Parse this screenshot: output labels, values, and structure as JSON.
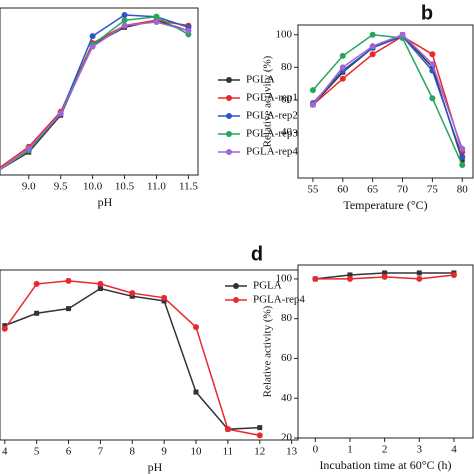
{
  "chart_data": [
    {
      "type": "line",
      "xlabel": "pH",
      "x": [
        8.5,
        9.0,
        9.5,
        10.0,
        10.5,
        11.0,
        11.5
      ],
      "xlim": [
        8.55,
        11.65
      ],
      "xticks": [
        {
          "value": 9.0,
          "label": "9.0"
        },
        {
          "value": 9.5,
          "label": "9.5"
        },
        {
          "value": 10.0,
          "label": "10.0"
        },
        {
          "value": 10.5,
          "label": "10.5"
        },
        {
          "value": 11.0,
          "label": "11.0"
        },
        {
          "value": 11.5,
          "label": "11.5"
        }
      ],
      "ylim": [
        10,
        105
      ],
      "series": [
        {
          "name": "PGLA",
          "color": "#333333",
          "values": [
            12,
            23,
            44,
            84,
            94,
            98,
            92
          ]
        },
        {
          "name": "PGLA-rep1",
          "color": "#e8282b",
          "values": [
            13,
            26,
            46,
            85,
            95,
            98,
            95
          ]
        },
        {
          "name": "PGLA-rep2",
          "color": "#2a56c6",
          "values": [
            12,
            24,
            45,
            89,
            101,
            100,
            94
          ]
        },
        {
          "name": "PGLA-rep3",
          "color": "#26a65b",
          "values": [
            12,
            24,
            45,
            84,
            98,
            100,
            90
          ]
        },
        {
          "name": "PGLA-rep4",
          "color": "#a066d8",
          "values": [
            12,
            25,
            45,
            83,
            95,
            97,
            92
          ]
        }
      ]
    },
    {
      "type": "line",
      "title": "b",
      "xlabel": "Temperature (°C)",
      "ylabel": "Relative activity (%)",
      "x": [
        55,
        60,
        65,
        70,
        75,
        80
      ],
      "xlim": [
        52.5,
        81.8
      ],
      "xticks": [
        55,
        60,
        65,
        70,
        75,
        80
      ],
      "ylim": [
        12,
        106
      ],
      "yticks": [
        40,
        60,
        80,
        100
      ],
      "series": [
        {
          "color": "#333333",
          "values": [
            57,
            77,
            92,
            100,
            80,
            23
          ]
        },
        {
          "color": "#e8282b",
          "values": [
            57,
            73,
            88,
            99,
            88,
            28
          ]
        },
        {
          "color": "#2a56c6",
          "values": [
            58,
            78,
            92,
            99,
            78,
            25
          ]
        },
        {
          "color": "#26a65b",
          "values": [
            66,
            87,
            100,
            98,
            61,
            20
          ]
        },
        {
          "color": "#a066d8",
          "values": [
            57,
            80,
            93,
            100,
            82,
            30
          ]
        }
      ]
    },
    {
      "type": "line",
      "xlabel": "pH",
      "x": [
        4,
        5,
        6,
        7,
        8,
        9,
        10,
        11,
        12
      ],
      "xlim": [
        3.85,
        13.2
      ],
      "xticks": [
        4,
        5,
        6,
        7,
        8,
        9,
        10,
        11,
        12,
        13
      ],
      "ylim": [
        0,
        110
      ],
      "series": [
        {
          "name": "PGLA",
          "color": "#333333",
          "values": [
            74,
            82,
            85,
            98,
            93,
            90,
            31,
            7,
            8
          ]
        },
        {
          "name": "PGLA-rep4",
          "color": "#e8282b",
          "values": [
            72,
            101,
            103,
            101,
            95,
            92,
            73,
            7,
            3
          ]
        }
      ]
    },
    {
      "type": "line",
      "title": "d",
      "xlabel": "Incubation time at 60°C (h)",
      "ylabel": "Relative activity (%)",
      "x": [
        0,
        1,
        2,
        3,
        4
      ],
      "xlim": [
        -0.5,
        4.55
      ],
      "xticks": [
        0,
        1,
        2,
        3,
        4
      ],
      "ylim": [
        20,
        107
      ],
      "yticks": [
        20,
        40,
        60,
        80,
        100
      ],
      "series": [
        {
          "color": "#333333",
          "values": [
            100,
            102,
            103,
            103,
            103
          ]
        },
        {
          "color": "#e8282b",
          "values": [
            100,
            100,
            101,
            100,
            102
          ]
        }
      ]
    }
  ]
}
